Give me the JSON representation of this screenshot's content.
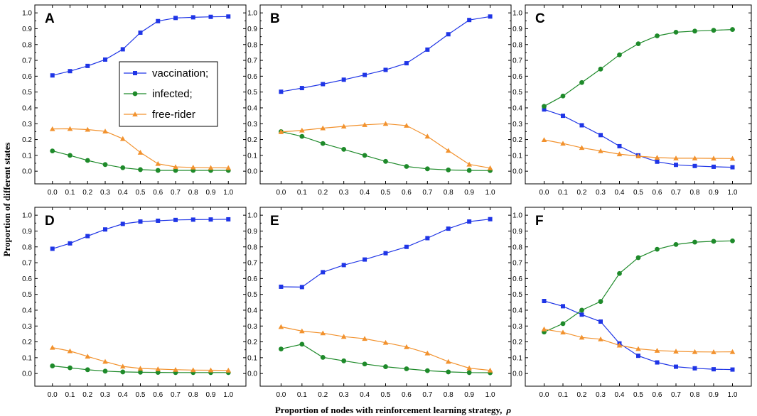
{
  "figure": {
    "ylabel": "Proportion of different states",
    "xlabel": "Proportion of nodes with reinforcement learning strategy,",
    "xlabel_symbol": "ρ"
  },
  "colors": {
    "vaccination": "#1f35e6",
    "infected": "#1e8a2a",
    "free_rider": "#f2922e"
  },
  "legend": [
    {
      "key": "vaccination",
      "label": "vaccination;",
      "marker": "square"
    },
    {
      "key": "infected",
      "label": "infected;",
      "marker": "circle"
    },
    {
      "key": "free_rider",
      "label": "free-rider",
      "marker": "triangle"
    }
  ],
  "chart_data": [
    {
      "type": "line",
      "label": "A",
      "x": [
        0.0,
        0.1,
        0.2,
        0.3,
        0.4,
        0.5,
        0.6,
        0.7,
        0.8,
        0.9,
        1.0
      ],
      "xlim": [
        -0.1,
        1.1
      ],
      "ylim": [
        -0.08,
        1.05
      ],
      "xticks": [
        "0.0",
        "0.1",
        "0.2",
        "0.3",
        "0.4",
        "0.5",
        "0.6",
        "0.7",
        "0.8",
        "0.9",
        "1.0"
      ],
      "yticks": [
        "0.0",
        "0.1",
        "0.2",
        "0.3",
        "0.4",
        "0.5",
        "0.6",
        "0.7",
        "0.8",
        "0.9",
        "1.0"
      ],
      "series": [
        {
          "name": "vaccination;",
          "key": "vaccination",
          "values": [
            0.605,
            0.632,
            0.665,
            0.705,
            0.77,
            0.875,
            0.948,
            0.968,
            0.972,
            0.975,
            0.977
          ]
        },
        {
          "name": "infected;",
          "key": "infected",
          "values": [
            0.128,
            0.1,
            0.068,
            0.042,
            0.022,
            0.01,
            0.005,
            0.005,
            0.005,
            0.005,
            0.005
          ]
        },
        {
          "name": "free-rider",
          "key": "free_rider",
          "values": [
            0.267,
            0.268,
            0.263,
            0.252,
            0.205,
            0.118,
            0.047,
            0.027,
            0.024,
            0.022,
            0.021
          ]
        }
      ]
    },
    {
      "type": "line",
      "label": "B",
      "x": [
        0.0,
        0.1,
        0.2,
        0.3,
        0.4,
        0.5,
        0.6,
        0.7,
        0.8,
        0.9,
        1.0
      ],
      "xlim": [
        -0.1,
        1.1
      ],
      "ylim": [
        -0.08,
        1.05
      ],
      "xticks": [
        "0.0",
        "0.1",
        "0.2",
        "0.3",
        "0.4",
        "0.5",
        "0.6",
        "0.7",
        "0.8",
        "0.9",
        "1.0"
      ],
      "yticks": [
        "0.0",
        "0.1",
        "0.2",
        "0.3",
        "0.4",
        "0.5",
        "0.6",
        "0.7",
        "0.8",
        "0.9",
        "1.0"
      ],
      "series": [
        {
          "name": "vaccination;",
          "key": "vaccination",
          "values": [
            0.502,
            0.525,
            0.55,
            0.578,
            0.608,
            0.64,
            0.682,
            0.768,
            0.865,
            0.955,
            0.977
          ]
        },
        {
          "name": "infected;",
          "key": "infected",
          "values": [
            0.25,
            0.22,
            0.175,
            0.138,
            0.1,
            0.062,
            0.03,
            0.015,
            0.008,
            0.005,
            0.004
          ]
        },
        {
          "name": "free-rider",
          "key": "free_rider",
          "values": [
            0.248,
            0.258,
            0.272,
            0.283,
            0.293,
            0.3,
            0.288,
            0.22,
            0.13,
            0.043,
            0.02
          ]
        }
      ]
    },
    {
      "type": "line",
      "label": "C",
      "x": [
        0.0,
        0.1,
        0.2,
        0.3,
        0.4,
        0.5,
        0.6,
        0.7,
        0.8,
        0.9,
        1.0
      ],
      "xlim": [
        -0.1,
        1.1
      ],
      "ylim": [
        -0.08,
        1.05
      ],
      "xticks": [
        "0.0",
        "0.1",
        "0.2",
        "0.3",
        "0.4",
        "0.5",
        "0.6",
        "0.7",
        "0.8",
        "0.9",
        "1.0"
      ],
      "yticks": [
        "0.0",
        "0.1",
        "0.2",
        "0.3",
        "0.4",
        "0.5",
        "0.6",
        "0.7",
        "0.8",
        "0.9",
        "1.0"
      ],
      "series": [
        {
          "name": "vaccination;",
          "key": "vaccination",
          "values": [
            0.39,
            0.35,
            0.29,
            0.228,
            0.158,
            0.1,
            0.06,
            0.04,
            0.033,
            0.028,
            0.025
          ]
        },
        {
          "name": "infected;",
          "key": "infected",
          "values": [
            0.41,
            0.475,
            0.56,
            0.645,
            0.735,
            0.805,
            0.855,
            0.878,
            0.885,
            0.89,
            0.895
          ]
        },
        {
          "name": "free-rider",
          "key": "free_rider",
          "values": [
            0.198,
            0.175,
            0.148,
            0.128,
            0.108,
            0.095,
            0.086,
            0.082,
            0.082,
            0.081,
            0.08
          ]
        }
      ]
    },
    {
      "type": "line",
      "label": "D",
      "x": [
        0.0,
        0.1,
        0.2,
        0.3,
        0.4,
        0.5,
        0.6,
        0.7,
        0.8,
        0.9,
        1.0
      ],
      "xlim": [
        -0.1,
        1.1
      ],
      "ylim": [
        -0.08,
        1.05
      ],
      "xticks": [
        "0.0",
        "0.1",
        "0.2",
        "0.3",
        "0.4",
        "0.5",
        "0.6",
        "0.7",
        "0.8",
        "0.9",
        "1.0"
      ],
      "yticks": [
        "0.0",
        "0.1",
        "0.2",
        "0.3",
        "0.4",
        "0.5",
        "0.6",
        "0.7",
        "0.8",
        "0.9",
        "1.0"
      ],
      "series": [
        {
          "name": "vaccination;",
          "key": "vaccination",
          "values": [
            0.788,
            0.822,
            0.868,
            0.91,
            0.945,
            0.96,
            0.965,
            0.97,
            0.972,
            0.973,
            0.974
          ]
        },
        {
          "name": "infected;",
          "key": "infected",
          "values": [
            0.048,
            0.036,
            0.024,
            0.015,
            0.01,
            0.008,
            0.007,
            0.006,
            0.006,
            0.006,
            0.006
          ]
        },
        {
          "name": "free-rider",
          "key": "free_rider",
          "values": [
            0.164,
            0.142,
            0.108,
            0.075,
            0.045,
            0.032,
            0.028,
            0.024,
            0.022,
            0.021,
            0.02
          ]
        }
      ]
    },
    {
      "type": "line",
      "label": "E",
      "x": [
        0.0,
        0.1,
        0.2,
        0.3,
        0.4,
        0.5,
        0.6,
        0.7,
        0.8,
        0.9,
        1.0
      ],
      "xlim": [
        -0.1,
        1.1
      ],
      "ylim": [
        -0.08,
        1.05
      ],
      "xticks": [
        "0.0",
        "0.1",
        "0.2",
        "0.3",
        "0.4",
        "0.5",
        "0.6",
        "0.7",
        "0.8",
        "0.9",
        "1.0"
      ],
      "yticks": [
        "0.0",
        "0.1",
        "0.2",
        "0.3",
        "0.4",
        "0.5",
        "0.6",
        "0.7",
        "0.8",
        "0.9",
        "1.0"
      ],
      "series": [
        {
          "name": "vaccination;",
          "key": "vaccination",
          "values": [
            0.548,
            0.546,
            0.64,
            0.685,
            0.72,
            0.76,
            0.8,
            0.855,
            0.915,
            0.96,
            0.975
          ]
        },
        {
          "name": "infected;",
          "key": "infected",
          "values": [
            0.155,
            0.185,
            0.102,
            0.08,
            0.06,
            0.043,
            0.03,
            0.018,
            0.01,
            0.006,
            0.005
          ]
        },
        {
          "name": "free-rider",
          "key": "free_rider",
          "values": [
            0.295,
            0.268,
            0.255,
            0.233,
            0.22,
            0.195,
            0.168,
            0.128,
            0.075,
            0.034,
            0.02
          ]
        }
      ]
    },
    {
      "type": "line",
      "label": "F",
      "x": [
        0.0,
        0.1,
        0.2,
        0.3,
        0.4,
        0.5,
        0.6,
        0.7,
        0.8,
        0.9,
        1.0
      ],
      "xlim": [
        -0.1,
        1.1
      ],
      "ylim": [
        -0.08,
        1.05
      ],
      "xticks": [
        "0.0",
        "0.1",
        "0.2",
        "0.3",
        "0.4",
        "0.5",
        "0.6",
        "0.7",
        "0.8",
        "0.9",
        "1.0"
      ],
      "yticks": [
        "0.0",
        "0.1",
        "0.2",
        "0.3",
        "0.4",
        "0.5",
        "0.6",
        "0.7",
        "0.8",
        "0.9",
        "1.0"
      ],
      "series": [
        {
          "name": "vaccination;",
          "key": "vaccination",
          "values": [
            0.458,
            0.425,
            0.372,
            0.328,
            0.19,
            0.112,
            0.07,
            0.043,
            0.033,
            0.027,
            0.025
          ]
        },
        {
          "name": "infected;",
          "key": "infected",
          "values": [
            0.262,
            0.315,
            0.4,
            0.455,
            0.632,
            0.732,
            0.785,
            0.815,
            0.83,
            0.835,
            0.838
          ]
        },
        {
          "name": "free-rider",
          "key": "free_rider",
          "values": [
            0.28,
            0.26,
            0.228,
            0.217,
            0.178,
            0.156,
            0.145,
            0.14,
            0.137,
            0.136,
            0.137
          ]
        }
      ]
    }
  ]
}
